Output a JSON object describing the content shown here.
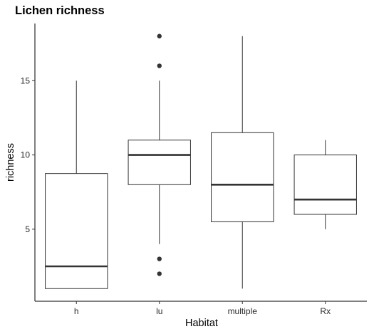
{
  "chart_data": {
    "type": "boxplot",
    "title": "Lichen richness",
    "xlabel": "Habitat",
    "ylabel": "richness",
    "categories": [
      "h",
      "lu",
      "multiple",
      "Rx"
    ],
    "boxes": [
      {
        "category": "h",
        "whisker_low": 1,
        "q1": 1,
        "median": 2.5,
        "q3": 8.75,
        "whisker_high": 15,
        "outliers": []
      },
      {
        "category": "lu",
        "whisker_low": 4,
        "q1": 8,
        "median": 10,
        "q3": 11,
        "whisker_high": 15,
        "outliers": [
          2,
          3,
          16,
          18
        ]
      },
      {
        "category": "multiple",
        "whisker_low": 1,
        "q1": 5.5,
        "median": 8,
        "q3": 11.5,
        "whisker_high": 18,
        "outliers": []
      },
      {
        "category": "Rx",
        "whisker_low": 5,
        "q1": 6,
        "median": 7,
        "q3": 10,
        "whisker_high": 11,
        "outliers": []
      }
    ],
    "yticks": [
      5,
      10,
      15
    ],
    "ylim": [
      0.15,
      18.85
    ],
    "grid": false,
    "legend": "none",
    "colors": {
      "box_fill": "#ffffff",
      "box_line": "#333333",
      "median_line": "#333333",
      "outlier": "#333333",
      "axis": "#000000"
    }
  }
}
